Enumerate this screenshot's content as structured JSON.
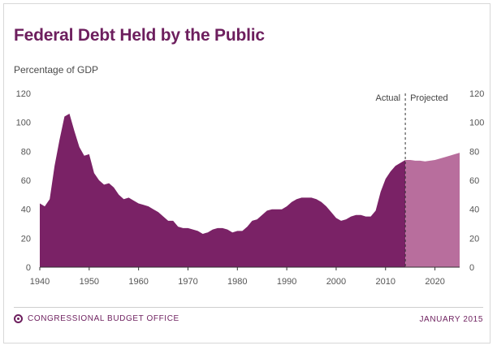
{
  "header": {
    "title": "Federal Debt Held by the Public",
    "subtitle": "Percentage of GDP"
  },
  "footer": {
    "agency": "CONGRESSIONAL BUDGET OFFICE",
    "date": "JANUARY 2015",
    "logo_icon": "cbo-logo-icon"
  },
  "colors": {
    "actual": "#7a2266",
    "projected": "#b86e9d",
    "title": "#6d1f5e"
  },
  "chart_data": {
    "type": "area",
    "title": "Federal Debt Held by the Public",
    "ylabel": "Percentage of GDP",
    "xlabel": "",
    "xlim": [
      1940,
      2025
    ],
    "ylim": [
      0,
      120
    ],
    "x_ticks": [
      1940,
      1950,
      1960,
      1970,
      1980,
      1990,
      2000,
      2010,
      2020
    ],
    "y_ticks": [
      0,
      20,
      40,
      60,
      80,
      100,
      120
    ],
    "grid": false,
    "divider_year": 2014,
    "annotations": [
      "Actual",
      "Projected"
    ],
    "series": [
      {
        "name": "Actual",
        "x": [
          1940,
          1941,
          1942,
          1943,
          1944,
          1945,
          1946,
          1947,
          1948,
          1949,
          1950,
          1951,
          1952,
          1953,
          1954,
          1955,
          1956,
          1957,
          1958,
          1959,
          1960,
          1961,
          1962,
          1963,
          1964,
          1965,
          1966,
          1967,
          1968,
          1969,
          1970,
          1971,
          1972,
          1973,
          1974,
          1975,
          1976,
          1977,
          1978,
          1979,
          1980,
          1981,
          1982,
          1983,
          1984,
          1985,
          1986,
          1987,
          1988,
          1989,
          1990,
          1991,
          1992,
          1993,
          1994,
          1995,
          1996,
          1997,
          1998,
          1999,
          2000,
          2001,
          2002,
          2003,
          2004,
          2005,
          2006,
          2007,
          2008,
          2009,
          2010,
          2011,
          2012,
          2013,
          2014
        ],
        "values": [
          44,
          42,
          47,
          70,
          88,
          104,
          106,
          94,
          83,
          77,
          78,
          65,
          60,
          57,
          58,
          55,
          50,
          47,
          48,
          46,
          44,
          43,
          42,
          40,
          38,
          35,
          32,
          32,
          28,
          27,
          27,
          26,
          25,
          23,
          24,
          26,
          27,
          27,
          26,
          24,
          25,
          25,
          28,
          32,
          33,
          36,
          39,
          40,
          40,
          40,
          42,
          45,
          47,
          48,
          48,
          48,
          47,
          45,
          42,
          38,
          34,
          32,
          33,
          35,
          36,
          36,
          35,
          35,
          39,
          52,
          61,
          66,
          70,
          72,
          74
        ]
      },
      {
        "name": "Projected",
        "x": [
          2014,
          2015,
          2016,
          2017,
          2018,
          2019,
          2020,
          2021,
          2022,
          2023,
          2024,
          2025
        ],
        "values": [
          74,
          74,
          73.5,
          73.5,
          73,
          73.5,
          74,
          75,
          76,
          77,
          78,
          79
        ]
      }
    ]
  }
}
